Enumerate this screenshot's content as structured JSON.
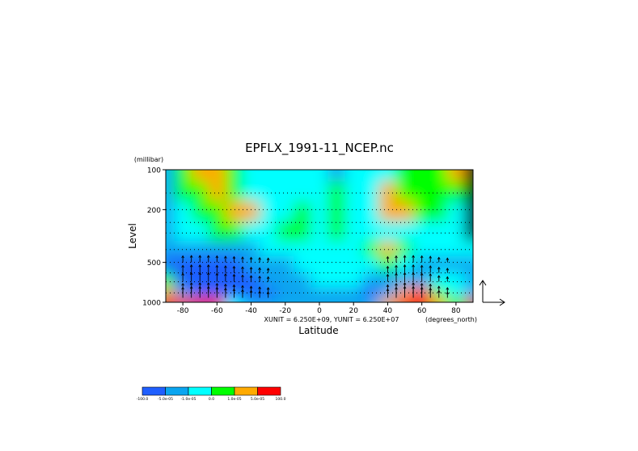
{
  "chart_data": {
    "type": "heatmap",
    "title": "EPFLX_1991-11_NCEP.nc",
    "xlabel": "Latitude",
    "ylabel": "Level",
    "y_unit_label": "(millibar)",
    "x_unit_label": "(degrees_north)",
    "vector_scale_label": "XUNIT = 6.250E+09, YUNIT = 6.250E+07",
    "x_ticks": [
      "-80",
      "-60",
      "-40",
      "-20",
      "0",
      "20",
      "40",
      "60",
      "80"
    ],
    "x_tick_values": [
      -80,
      -60,
      -40,
      -20,
      0,
      20,
      40,
      60,
      80
    ],
    "y_ticks": [
      "100",
      "200",
      "500",
      "1000"
    ],
    "y_tick_values": [
      100,
      200,
      500,
      1000
    ],
    "xlim": [
      -90,
      90
    ],
    "ylim": [
      1000,
      100
    ],
    "y_scale": "log",
    "colorbar": {
      "labels": [
        "-100.0",
        "-5.0e-05",
        "-1.0e-05",
        "0.0",
        "1.0e-05",
        "5.0e-05",
        "100.0"
      ],
      "colors": [
        "#1f5fff",
        "#0aa5f0",
        "#00ffff",
        "#00ff00",
        "#ffaa00",
        "#ff0000"
      ]
    },
    "field": {
      "lat": [
        -90,
        -80,
        -70,
        -60,
        -50,
        -40,
        -30,
        -20,
        -10,
        0,
        10,
        20,
        30,
        40,
        50,
        60,
        70,
        80,
        90
      ],
      "levels": [
        100,
        150,
        200,
        300,
        400,
        500,
        700,
        850,
        1000
      ],
      "category_grid": [
        [
          1,
          3,
          4,
          4,
          3,
          2,
          2,
          2,
          2,
          2,
          1,
          2,
          2,
          2,
          3,
          3,
          3,
          4,
          6
        ],
        [
          1,
          3,
          3,
          4,
          3,
          2,
          2,
          2,
          2,
          2,
          3,
          2,
          2,
          4,
          3,
          3,
          3,
          3,
          6
        ],
        [
          1,
          2,
          3,
          3,
          4,
          4,
          2,
          2,
          3,
          2,
          3,
          2,
          2,
          4,
          4,
          3,
          3,
          2,
          6
        ],
        [
          1,
          2,
          2,
          3,
          3,
          2,
          2,
          3,
          3,
          2,
          3,
          2,
          2,
          2,
          2,
          2,
          2,
          2,
          6
        ],
        [
          1,
          1,
          1,
          1,
          1,
          1,
          2,
          2,
          2,
          2,
          2,
          2,
          3,
          4,
          3,
          2,
          2,
          2,
          2
        ],
        [
          0,
          0,
          0,
          0,
          0,
          1,
          1,
          1,
          2,
          2,
          2,
          2,
          2,
          3,
          2,
          1,
          1,
          1,
          1
        ],
        [
          3,
          0,
          0,
          0,
          0,
          0,
          1,
          1,
          1,
          2,
          2,
          2,
          1,
          1,
          1,
          1,
          2,
          2,
          1
        ],
        [
          4,
          1,
          0,
          0,
          0,
          0,
          0,
          1,
          1,
          1,
          1,
          1,
          0,
          1,
          4,
          5,
          3,
          2,
          1
        ],
        [
          5,
          5,
          5,
          5,
          2,
          1,
          1,
          1,
          1,
          1,
          1,
          1,
          1,
          4,
          5,
          5,
          4,
          3,
          5
        ]
      ]
    },
    "vectors": {
      "lat": [
        -80,
        -75,
        -70,
        -65,
        -60,
        -55,
        -50,
        -45,
        -40,
        -35,
        -30,
        40,
        45,
        50,
        55,
        60,
        65,
        70,
        75
      ],
      "upward_flux": [
        0.9,
        1.0,
        1.0,
        1.0,
        0.9,
        0.8,
        0.7,
        0.6,
        0.5,
        0.4,
        0.3,
        0.7,
        0.9,
        1.0,
        1.0,
        0.9,
        0.8,
        0.5,
        0.3
      ]
    }
  }
}
